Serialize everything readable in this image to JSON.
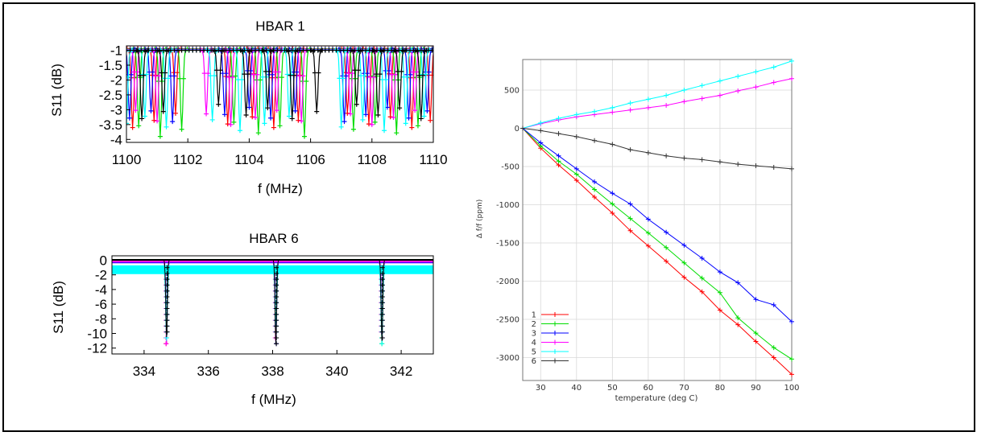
{
  "chart_data": [
    {
      "type": "line",
      "title": "HBAR 1",
      "xlabel": "f (MHz)",
      "ylabel": "S11 (dB)",
      "xlim": [
        1100,
        1110
      ],
      "ylim": [
        -4.1,
        -0.85
      ],
      "xticks": [
        1100,
        1102,
        1104,
        1106,
        1108,
        1110
      ],
      "yticks": [
        -1,
        -1.5,
        -2,
        -2.5,
        -3,
        -3.5,
        -4
      ],
      "ytick_labels": [
        "-1",
        "-1.5",
        "-2",
        "-2.5",
        "-3",
        "-3.5",
        "-4"
      ],
      "series": [
        {
          "color": "#ff0000",
          "dips": [
            1100.2,
            1100.9,
            1101.6,
            1103.3,
            1104.1,
            1104.8,
            1105.6,
            1107.2,
            1107.9,
            1108.6,
            1109.3,
            1109.9
          ],
          "min": -3.6
        },
        {
          "color": "#00dd00",
          "dips": [
            1100.4,
            1101.1,
            1101.8,
            1103.5,
            1104.3,
            1105.0,
            1105.8,
            1107.4,
            1108.1,
            1108.8,
            1109.5
          ],
          "min": -3.9
        },
        {
          "color": "#0000ff",
          "dips": [
            1100.1,
            1100.8,
            1101.5,
            1103.2,
            1104.0,
            1104.7,
            1105.5,
            1107.1,
            1107.8,
            1108.5,
            1109.2,
            1109.8
          ],
          "min": -3.4
        },
        {
          "color": "#ff00ff",
          "dips": [
            1100.3,
            1101.0,
            1102.6,
            1103.4,
            1104.2,
            1104.9,
            1105.7,
            1107.3,
            1108.0,
            1108.7,
            1109.4
          ],
          "min": -3.5
        },
        {
          "color": "#00ffff",
          "dips": [
            1100.0,
            1100.6,
            1101.3,
            1102.8,
            1103.7,
            1104.5,
            1105.3,
            1107.0,
            1107.7,
            1108.4,
            1109.1,
            1109.7
          ],
          "min": -3.7
        },
        {
          "color": "#000000",
          "dips": [
            1100.5,
            1101.2,
            1103.0,
            1103.9,
            1104.6,
            1105.4,
            1106.2,
            1107.5,
            1108.2,
            1108.9,
            1109.6
          ],
          "min": -3.3
        }
      ]
    },
    {
      "type": "line",
      "title": "HBAR 6",
      "xlabel": "f (MHz)",
      "ylabel": "S11 (dB)",
      "xlim": [
        333,
        343
      ],
      "ylim": [
        -12.8,
        0.6
      ],
      "xticks": [
        334,
        336,
        338,
        340,
        342
      ],
      "yticks": [
        0,
        -2,
        -4,
        -6,
        -8,
        -10,
        -12
      ],
      "ytick_labels": [
        "0",
        "-2",
        "-4",
        "-6",
        "-8",
        "-10",
        "-12"
      ],
      "dips": [
        334.7,
        338.1,
        341.4
      ],
      "dip_min": -11.5,
      "series": [
        {
          "color": "#ff0000",
          "base": -0.1
        },
        {
          "color": "#00dd00",
          "base": -0.2
        },
        {
          "color": "#0000ff",
          "base": -0.3
        },
        {
          "color": "#ff00ff",
          "base": -0.2
        },
        {
          "color": "#00ffff",
          "base": -1.6
        },
        {
          "color": "#000000",
          "base": 0.05
        }
      ]
    },
    {
      "type": "line",
      "title": "",
      "xlabel": "temperature (deg C)",
      "ylabel": "Δ f/f (ppm)",
      "xlim": [
        25,
        100
      ],
      "ylim": [
        -3300,
        900
      ],
      "xticks": [
        30,
        40,
        50,
        60,
        70,
        80,
        90,
        100
      ],
      "yticks": [
        500,
        0,
        -500,
        -1000,
        -1500,
        -2000,
        -2500,
        -3000
      ],
      "legend": "bottom-left",
      "grid": true,
      "x": [
        25,
        30,
        35,
        40,
        45,
        50,
        55,
        60,
        65,
        70,
        75,
        80,
        85,
        90,
        95,
        100
      ],
      "series": [
        {
          "name": "1",
          "color": "#ff0000",
          "values": [
            0,
            -260,
            -480,
            -680,
            -900,
            -1110,
            -1340,
            -1540,
            -1740,
            -1950,
            -2140,
            -2380,
            -2570,
            -2790,
            -3000,
            -3220
          ]
        },
        {
          "name": "2",
          "color": "#00dd00",
          "values": [
            0,
            -230,
            -430,
            -600,
            -800,
            -990,
            -1180,
            -1370,
            -1560,
            -1760,
            -1960,
            -2150,
            -2480,
            -2680,
            -2870,
            -3020
          ]
        },
        {
          "name": "3",
          "color": "#0000ff",
          "values": [
            0,
            -190,
            -360,
            -530,
            -700,
            -850,
            -990,
            -1190,
            -1360,
            -1530,
            -1700,
            -1880,
            -2020,
            -2240,
            -2310,
            -2530
          ]
        },
        {
          "name": "4",
          "color": "#ff00ff",
          "values": [
            0,
            60,
            110,
            150,
            180,
            210,
            240,
            270,
            300,
            350,
            390,
            430,
            490,
            540,
            600,
            650
          ]
        },
        {
          "name": "5",
          "color": "#00ffff",
          "values": [
            0,
            70,
            130,
            180,
            220,
            270,
            330,
            380,
            430,
            500,
            560,
            620,
            680,
            740,
            800,
            880
          ]
        },
        {
          "name": "6",
          "color": "#333333",
          "values": [
            0,
            -30,
            -70,
            -110,
            -160,
            -210,
            -280,
            -320,
            -360,
            -390,
            -410,
            -440,
            -470,
            -490,
            -510,
            -530
          ]
        }
      ]
    }
  ]
}
